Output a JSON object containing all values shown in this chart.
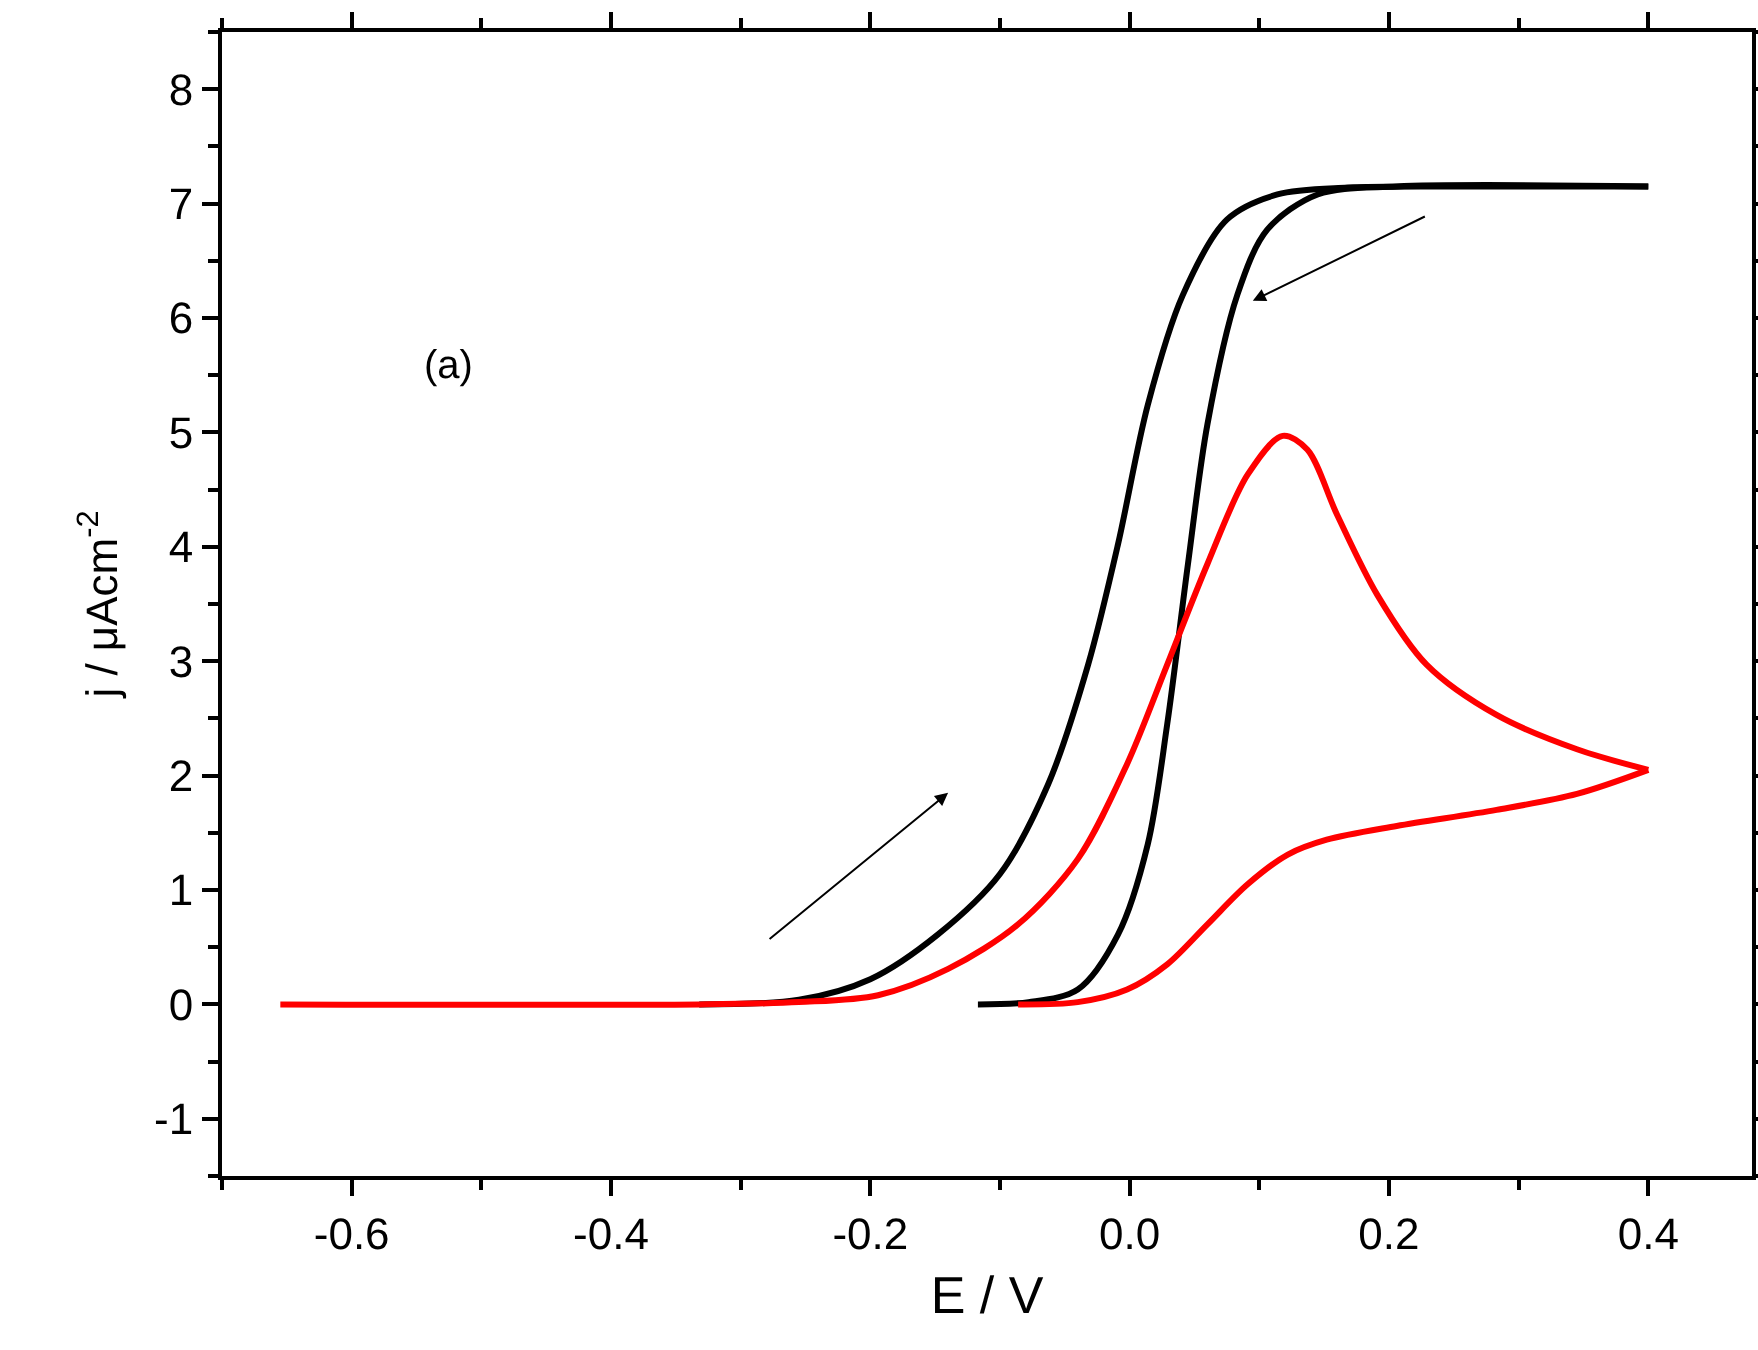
{
  "chart_data": {
    "type": "line",
    "xlabel": "E / V",
    "ylabel": "j / μAcm$^{-2}$",
    "xlim": [
      -0.7,
      0.48
    ],
    "ylim": [
      -1.5,
      8.5
    ],
    "xticks": [
      -0.6,
      -0.4,
      -0.2,
      {
        "value": 0,
        "label": "0.0"
      },
      0.2,
      0.4
    ],
    "yticks": [
      -1,
      0,
      1,
      2,
      3,
      4,
      5,
      6,
      7,
      8
    ],
    "marker": "none",
    "line_style": "solid",
    "annotations": [
      "(a)"
    ],
    "series": [
      {
        "color": "#000000",
        "x": [
          -0.332,
          -0.255,
          -0.2,
          -0.148,
          -0.1,
          -0.063,
          -0.032,
          -0.009,
          0.014,
          0.041,
          0.075,
          0.114,
          0.168,
          0.25,
          0.4
        ],
        "values": [
          0,
          0.04,
          0.22,
          0.61,
          1.14,
          1.92,
          2.97,
          4.02,
          5.24,
          6.2,
          6.86,
          7.08,
          7.14,
          7.15,
          7.15
        ]
      },
      {
        "color": "#000000",
        "x": [
          0.4,
          0.206,
          0.145,
          0.106,
          0.083,
          0.06,
          0.045,
          0.029,
          0.014,
          -0.009,
          -0.04,
          -0.078,
          -0.117
        ],
        "values": [
          7.15,
          7.15,
          7.08,
          6.77,
          6.2,
          5.07,
          3.85,
          2.45,
          1.4,
          0.61,
          0.13,
          0.02,
          0
        ]
      },
      {
        "color": "#ff0000",
        "x": [
          -0.655,
          -0.332,
          -0.255,
          -0.194,
          -0.14,
          -0.086,
          -0.04,
          -0.002,
          0.029,
          0.06,
          0.091,
          0.118,
          0.137,
          0.16,
          0.191,
          0.229,
          0.283,
          0.345,
          0.4
        ],
        "values": [
          0,
          0,
          0.02,
          0.08,
          0.31,
          0.7,
          1.27,
          2.1,
          2.97,
          3.85,
          4.63,
          4.97,
          4.85,
          4.28,
          3.58,
          2.97,
          2.53,
          2.23,
          2.05
        ]
      },
      {
        "color": "#ff0000",
        "x": [
          0.4,
          0.345,
          0.283,
          0.206,
          0.152,
          0.122,
          0.091,
          0.06,
          0.029,
          -0.002,
          -0.04,
          -0.086
        ],
        "values": [
          2.05,
          1.84,
          1.7,
          1.56,
          1.44,
          1.31,
          1.05,
          0.7,
          0.35,
          0.13,
          0.02,
          0
        ]
      }
    ]
  }
}
